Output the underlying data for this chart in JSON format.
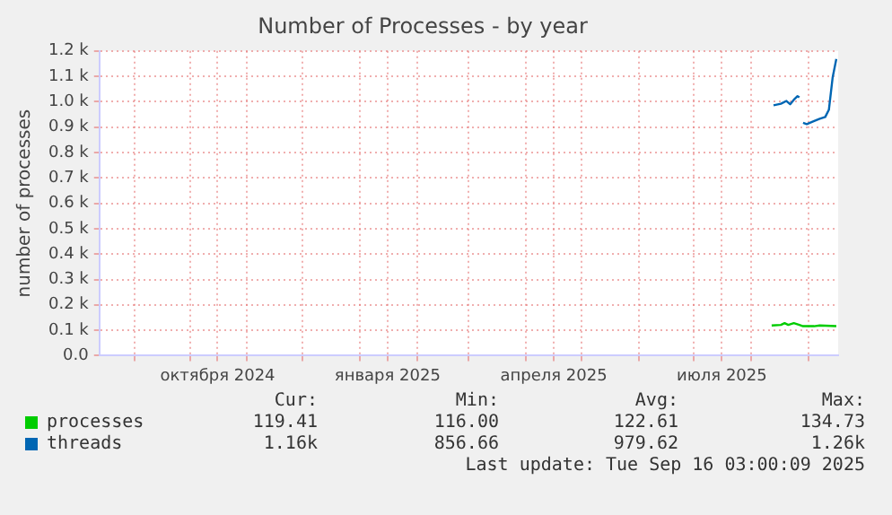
{
  "chart_data": {
    "type": "line",
    "title": "Number of Processes - by year",
    "ylabel": "number of processes",
    "series": [
      {
        "name": "processes",
        "color": "#00cc00",
        "x": [
          "2025-08-12",
          "2025-08-17",
          "2025-08-19",
          "2025-08-21",
          "2025-08-24",
          "2025-08-27",
          "2025-08-29",
          "2025-09-04",
          "2025-09-07",
          "2025-09-10",
          "2025-09-16"
        ],
        "values": [
          119,
          121,
          128,
          121,
          128,
          121,
          116,
          116,
          119,
          118,
          116
        ]
      },
      {
        "name": "threads",
        "color": "#0066b3",
        "x": [
          "2025-08-13",
          "2025-08-17",
          "2025-08-20",
          "2025-08-22",
          "2025-08-24",
          "2025-08-26",
          "2025-08-27",
          "2025-08-28",
          "2025-08-29",
          "2025-08-31",
          "2025-09-04",
          "2025-09-07",
          "2025-09-10",
          "2025-09-12",
          "2025-09-14",
          "2025-09-16"
        ],
        "values": [
          986,
          992,
          1003,
          990,
          1008,
          1022,
          1017,
          null,
          917,
          912,
          924,
          933,
          940,
          969,
          1095,
          1168
        ]
      }
    ],
    "xlim": [
      "2024-08-13",
      "2025-09-17"
    ],
    "xticks": [
      {
        "value": "2024-09-01",
        "label": null
      },
      {
        "value": "2024-10-01",
        "label": null
      },
      {
        "value": "2024-10-16",
        "label": "октября 2024"
      },
      {
        "value": "2024-11-01",
        "label": null
      },
      {
        "value": "2024-12-01",
        "label": null
      },
      {
        "value": "2025-01-01",
        "label": null
      },
      {
        "value": "2025-01-16",
        "label": "января 2025"
      },
      {
        "value": "2025-02-01",
        "label": null
      },
      {
        "value": "2025-03-01",
        "label": null
      },
      {
        "value": "2025-04-01",
        "label": null
      },
      {
        "value": "2025-04-16",
        "label": "апреля 2025"
      },
      {
        "value": "2025-05-01",
        "label": null
      },
      {
        "value": "2025-06-01",
        "label": null
      },
      {
        "value": "2025-07-01",
        "label": null
      },
      {
        "value": "2025-07-16",
        "label": "июля 2025"
      },
      {
        "value": "2025-08-01",
        "label": null
      },
      {
        "value": "2025-09-01",
        "label": null
      }
    ],
    "ylim": [
      0,
      1200
    ],
    "yticks": [
      {
        "value": 0,
        "label": "0.0"
      },
      {
        "value": 100,
        "label": "0.1 k"
      },
      {
        "value": 200,
        "label": "0.2 k"
      },
      {
        "value": 300,
        "label": "0.3 k"
      },
      {
        "value": 400,
        "label": "0.4 k"
      },
      {
        "value": 500,
        "label": "0.5 k"
      },
      {
        "value": 600,
        "label": "0.6 k"
      },
      {
        "value": 700,
        "label": "0.7 k"
      },
      {
        "value": 800,
        "label": "0.8 k"
      },
      {
        "value": 900,
        "label": "0.9 k"
      },
      {
        "value": 1000,
        "label": "1.0 k"
      },
      {
        "value": 1100,
        "label": "1.1 k"
      },
      {
        "value": 1200,
        "label": "1.2 k"
      }
    ],
    "grid": true,
    "legend": "bottom",
    "marker": "none",
    "line_style": "solid",
    "annotations": [
      "Cur:",
      "Min:",
      "Avg:",
      "Max:",
      "119.41",
      "116.00",
      "122.61",
      "134.73",
      "1.16k",
      "856.66",
      "979.62",
      "1.26k",
      "Last update: Tue Sep 16 03:00:09 2025"
    ]
  }
}
